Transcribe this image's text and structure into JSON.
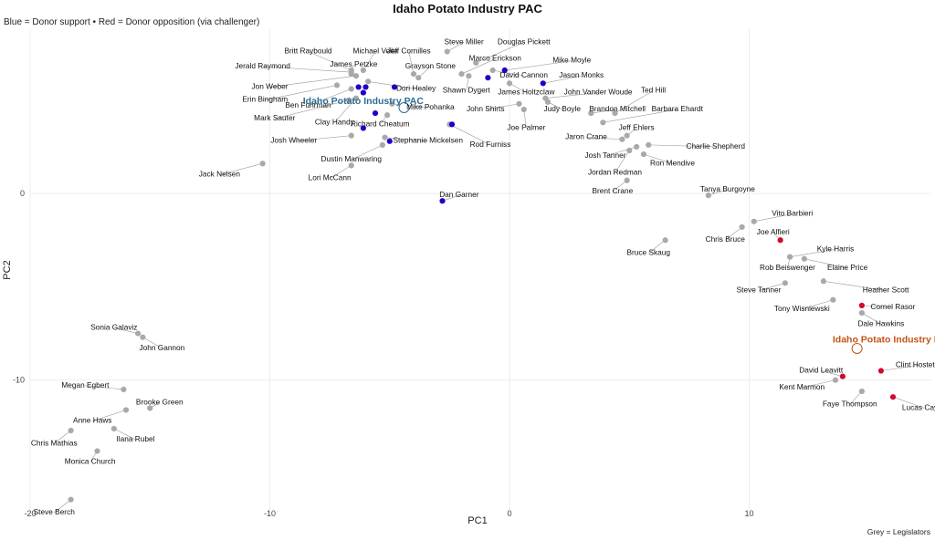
{
  "chart_data": {
    "type": "scatter",
    "title": "Idaho Potato Industry PAC",
    "subtitle": "Blue = Donor support • Red = Donor opposition (via challenger)",
    "xlabel": "PC1",
    "ylabel": "PC2",
    "caption": "Grey = Legislators",
    "xlim": [
      -20,
      17.6
    ],
    "ylim": [
      -17,
      8.8
    ],
    "xticks": [
      -20,
      -10,
      0,
      10
    ],
    "yticks": [
      0,
      -10
    ],
    "grid": true,
    "colors": {
      "support": "#1f00c8",
      "oppose": "#d10a2e",
      "neutral": "#a9a9a9",
      "pac_support": "#2c6e95",
      "pac_oppose": "#c4551a",
      "grid": "#ececf2"
    },
    "pac_points": [
      {
        "name": "Idaho Potato Industry PAC",
        "x": -4.4,
        "y": 4.6,
        "kind": "support",
        "lx": -6.1,
        "ly": 5.0
      },
      {
        "name": "Idaho Potato Industry PAC",
        "x": 14.5,
        "y": -8.3,
        "kind": "oppose",
        "lx": 16.0,
        "ly": -7.8
      }
    ],
    "points": [
      {
        "name": "Steve Miller",
        "x": -2.6,
        "y": 7.6,
        "kind": "neutral",
        "lx": -1.9,
        "ly": 8.2
      },
      {
        "name": "Douglas Pickett",
        "x": -1.4,
        "y": 7.0,
        "kind": "neutral",
        "lx": 0.6,
        "ly": 8.2
      },
      {
        "name": "Jeff Cornilles",
        "x": -4.0,
        "y": 6.4,
        "kind": "neutral",
        "lx": -4.2,
        "ly": 7.7
      },
      {
        "name": "Britt Raybould",
        "x": -6.6,
        "y": 6.6,
        "kind": "neutral",
        "lx": -8.4,
        "ly": 7.7
      },
      {
        "name": "Michael Veile",
        "x": -6.1,
        "y": 6.6,
        "kind": "neutral",
        "lx": -5.6,
        "ly": 7.7
      },
      {
        "name": "Marco Erickson",
        "x": -2.0,
        "y": 6.4,
        "kind": "neutral",
        "lx": -0.6,
        "ly": 7.3
      },
      {
        "name": "Mike Moyle",
        "x": -0.2,
        "y": 6.6,
        "kind": "support",
        "lx": 2.6,
        "ly": 7.2
      },
      {
        "name": "James Petzke",
        "x": -6.6,
        "y": 6.4,
        "kind": "neutral",
        "lx": -6.5,
        "ly": 7.0
      },
      {
        "name": "Jerald Raymond",
        "x": -6.6,
        "y": 6.5,
        "kind": "neutral",
        "lx": -10.3,
        "ly": 6.9
      },
      {
        "name": "Grayson Stone",
        "x": -3.8,
        "y": 6.2,
        "kind": "neutral",
        "lx": -3.3,
        "ly": 6.9
      },
      {
        "name": "David Cannon",
        "x": -0.7,
        "y": 6.6,
        "kind": "neutral",
        "lx": 0.6,
        "ly": 6.4
      },
      {
        "name": "Jason Monks",
        "x": 1.4,
        "y": 5.9,
        "kind": "support",
        "lx": 3.0,
        "ly": 6.4
      },
      {
        "name": "Jon Weber",
        "x": -6.4,
        "y": 6.3,
        "kind": "neutral",
        "lx": -10.0,
        "ly": 5.8
      },
      {
        "name": "Dori Healey",
        "x": -5.9,
        "y": 6.0,
        "kind": "neutral",
        "lx": -3.9,
        "ly": 5.7
      },
      {
        "name": "Shawn Dygert",
        "x": -1.7,
        "y": 6.3,
        "kind": "neutral",
        "lx": -1.8,
        "ly": 5.6
      },
      {
        "name": "James Holtzclaw",
        "x": 0.0,
        "y": 5.9,
        "kind": "neutral",
        "lx": 0.7,
        "ly": 5.5
      },
      {
        "name": "John Vander Woude",
        "x": 1.5,
        "y": 5.1,
        "kind": "neutral",
        "lx": 3.7,
        "ly": 5.5
      },
      {
        "name": "Erin Bingham",
        "x": -7.2,
        "y": 5.8,
        "kind": "neutral",
        "lx": -10.2,
        "ly": 5.1
      },
      {
        "name": "Ben Fuhrman",
        "x": -6.6,
        "y": 5.6,
        "kind": "neutral",
        "lx": -8.4,
        "ly": 4.8
      },
      {
        "name": "Mike Pohanka",
        "x": -4.9,
        "y": 4.8,
        "kind": "neutral",
        "lx": -3.3,
        "ly": 4.7
      },
      {
        "name": "Ted Hill",
        "x": 4.4,
        "y": 4.3,
        "kind": "neutral",
        "lx": 6.0,
        "ly": 5.6
      },
      {
        "name": "John Shirts",
        "x": 0.4,
        "y": 4.8,
        "kind": "neutral",
        "lx": -1.0,
        "ly": 4.6
      },
      {
        "name": "Judy Boyle",
        "x": 1.6,
        "y": 4.9,
        "kind": "neutral",
        "lx": 2.2,
        "ly": 4.6
      },
      {
        "name": "Brandon Mitchell",
        "x": 3.4,
        "y": 4.3,
        "kind": "neutral",
        "lx": 4.5,
        "ly": 4.6
      },
      {
        "name": "Barbara Ehardt",
        "x": 3.9,
        "y": 3.8,
        "kind": "neutral",
        "lx": 7.0,
        "ly": 4.6
      },
      {
        "name": "Mark Sauter",
        "x": -6.7,
        "y": 5.0,
        "kind": "neutral",
        "lx": -9.8,
        "ly": 4.1
      },
      {
        "name": "Clay Handy",
        "x": -6.4,
        "y": 5.1,
        "kind": "neutral",
        "lx": -7.3,
        "ly": 3.9
      },
      {
        "name": "Richard Cheatum",
        "x": -5.1,
        "y": 4.2,
        "kind": "neutral",
        "lx": -5.4,
        "ly": 3.8
      },
      {
        "name": "Joe Palmer",
        "x": 0.6,
        "y": 4.5,
        "kind": "neutral",
        "lx": 0.7,
        "ly": 3.6
      },
      {
        "name": "Jeff Ehlers",
        "x": 4.9,
        "y": 3.1,
        "kind": "neutral",
        "lx": 5.3,
        "ly": 3.6
      },
      {
        "name": "Jaron Crane",
        "x": 4.7,
        "y": 2.9,
        "kind": "neutral",
        "lx": 3.2,
        "ly": 3.1
      },
      {
        "name": "Charlie Shepherd",
        "x": 5.8,
        "y": 2.6,
        "kind": "neutral",
        "lx": 8.6,
        "ly": 2.6
      },
      {
        "name": "Josh Wheeler",
        "x": -6.6,
        "y": 3.1,
        "kind": "neutral",
        "lx": -9.0,
        "ly": 2.9
      },
      {
        "name": "Stephanie Mickelsen",
        "x": -5.2,
        "y": 3.0,
        "kind": "neutral",
        "lx": -3.4,
        "ly": 2.9
      },
      {
        "name": "Rod Furniss",
        "x": -2.5,
        "y": 3.7,
        "kind": "neutral",
        "lx": -0.8,
        "ly": 2.7
      },
      {
        "name": "Josh Tanner",
        "x": 5.3,
        "y": 2.5,
        "kind": "neutral",
        "lx": 4.0,
        "ly": 2.1
      },
      {
        "name": "Ron Mendive",
        "x": 5.6,
        "y": 2.1,
        "kind": "neutral",
        "lx": 6.8,
        "ly": 1.7
      },
      {
        "name": "Dustin Manwaring",
        "x": -5.3,
        "y": 2.6,
        "kind": "neutral",
        "lx": -6.6,
        "ly": 1.9
      },
      {
        "name": "Jordan Redman",
        "x": 5.0,
        "y": 2.3,
        "kind": "neutral",
        "lx": 4.4,
        "ly": 1.2
      },
      {
        "name": "Jack Nelsen",
        "x": -10.3,
        "y": 1.6,
        "kind": "neutral",
        "lx": -12.1,
        "ly": 1.1
      },
      {
        "name": "Lori McCann",
        "x": -6.6,
        "y": 1.5,
        "kind": "neutral",
        "lx": -7.5,
        "ly": 0.9
      },
      {
        "name": "Brent Crane",
        "x": 4.9,
        "y": 0.7,
        "kind": "neutral",
        "lx": 4.3,
        "ly": 0.2
      },
      {
        "name": "Dan Garner",
        "x": -2.8,
        "y": -0.4,
        "kind": "support",
        "lx": -2.1,
        "ly": 0.0
      },
      {
        "name": "Tanya Burgoyne",
        "x": 8.3,
        "y": -0.1,
        "kind": "neutral",
        "lx": 9.1,
        "ly": 0.3
      },
      {
        "name": "Jon Weber",
        "x": -6.3,
        "y": 5.7,
        "kind": "support",
        "lx": null,
        "ly": null
      },
      {
        "name": "Clay Handy",
        "x": -6.0,
        "y": 5.7,
        "kind": "support",
        "lx": null,
        "ly": null
      },
      {
        "name": "Ben Fuhrman",
        "x": -6.1,
        "y": 5.4,
        "kind": "support",
        "lx": null,
        "ly": null
      },
      {
        "name": "Dori Healey",
        "x": -4.8,
        "y": 5.7,
        "kind": "support",
        "lx": null,
        "ly": null
      },
      {
        "name": "Mark Sauter",
        "x": -5.6,
        "y": 4.3,
        "kind": "support",
        "lx": null,
        "ly": null
      },
      {
        "name": "Josh Wheeler",
        "x": -6.1,
        "y": 3.5,
        "kind": "support",
        "lx": null,
        "ly": null
      },
      {
        "name": "Stephanie Mickelsen",
        "x": -5.0,
        "y": 2.8,
        "kind": "support",
        "lx": null,
        "ly": null
      },
      {
        "name": "Rod Furniss",
        "x": -2.4,
        "y": 3.7,
        "kind": "support",
        "lx": null,
        "ly": null
      },
      {
        "name": "James Holtzclaw",
        "x": -0.9,
        "y": 6.2,
        "kind": "support",
        "lx": null,
        "ly": null
      },
      {
        "name": "Vito Barbieri",
        "x": 10.2,
        "y": -1.5,
        "kind": "neutral",
        "lx": 11.8,
        "ly": -1.0
      },
      {
        "name": "Chris Bruce",
        "x": 9.7,
        "y": -1.8,
        "kind": "neutral",
        "lx": 9.0,
        "ly": -2.4
      },
      {
        "name": "Joe Alfieri",
        "x": 11.3,
        "y": -2.5,
        "kind": "oppose",
        "lx": 11.0,
        "ly": -2.0
      },
      {
        "name": "Bruce Skaug",
        "x": 6.5,
        "y": -2.5,
        "kind": "neutral",
        "lx": 5.8,
        "ly": -3.1
      },
      {
        "name": "Kyle Harris",
        "x": 11.7,
        "y": -3.4,
        "kind": "neutral",
        "lx": 13.6,
        "ly": -2.9
      },
      {
        "name": "Rob Beiswenger",
        "x": 11.7,
        "y": -3.4,
        "kind": "neutral",
        "lx": 11.6,
        "ly": -3.9
      },
      {
        "name": "Elaine Price",
        "x": 12.3,
        "y": -3.5,
        "kind": "neutral",
        "lx": 14.1,
        "ly": -3.9
      },
      {
        "name": "Steve Tanner",
        "x": 11.5,
        "y": -4.8,
        "kind": "neutral",
        "lx": 10.4,
        "ly": -5.1
      },
      {
        "name": "Heather Scott",
        "x": 13.1,
        "y": -4.7,
        "kind": "neutral",
        "lx": 15.7,
        "ly": -5.1
      },
      {
        "name": "Tony Wisniewski",
        "x": 13.5,
        "y": -5.7,
        "kind": "neutral",
        "lx": 12.2,
        "ly": -6.1
      },
      {
        "name": "Cornel Rasor",
        "x": 14.7,
        "y": -6.0,
        "kind": "oppose",
        "lx": 16.0,
        "ly": -6.0
      },
      {
        "name": "Dale Hawkins",
        "x": 14.7,
        "y": -6.4,
        "kind": "neutral",
        "lx": 15.5,
        "ly": -6.9
      },
      {
        "name": "Clint Hostetler",
        "x": 15.5,
        "y": -9.5,
        "kind": "oppose",
        "lx": 17.1,
        "ly": -9.1
      },
      {
        "name": "David Leavitt",
        "x": 13.9,
        "y": -9.8,
        "kind": "oppose",
        "lx": 13.0,
        "ly": -9.4
      },
      {
        "name": "Kent Marmon",
        "x": 13.6,
        "y": -10.0,
        "kind": "neutral",
        "lx": 12.2,
        "ly": -10.3
      },
      {
        "name": "Faye Thompson",
        "x": 14.7,
        "y": -10.6,
        "kind": "neutral",
        "lx": 14.2,
        "ly": -11.2
      },
      {
        "name": "Lucas Cayler",
        "x": 16.0,
        "y": -10.9,
        "kind": "oppose",
        "lx": 17.3,
        "ly": -11.4
      },
      {
        "name": "Sonia Galaviz",
        "x": -15.5,
        "y": -7.5,
        "kind": "neutral",
        "lx": -16.5,
        "ly": -7.1
      },
      {
        "name": "John Gannon",
        "x": -15.3,
        "y": -7.7,
        "kind": "neutral",
        "lx": -14.5,
        "ly": -8.2
      },
      {
        "name": "Megan Egbert",
        "x": -16.1,
        "y": -10.5,
        "kind": "neutral",
        "lx": -17.7,
        "ly": -10.2
      },
      {
        "name": "Brooke Green",
        "x": -15.0,
        "y": -11.5,
        "kind": "neutral",
        "lx": -14.6,
        "ly": -11.1
      },
      {
        "name": "Anne Haws",
        "x": -16.0,
        "y": -11.6,
        "kind": "neutral",
        "lx": -17.4,
        "ly": -12.1
      },
      {
        "name": "Ilana Rubel",
        "x": -16.5,
        "y": -12.6,
        "kind": "neutral",
        "lx": -15.6,
        "ly": -13.1
      },
      {
        "name": "Chris Mathias",
        "x": -18.3,
        "y": -12.7,
        "kind": "neutral",
        "lx": -19.0,
        "ly": -13.3
      },
      {
        "name": "Monica Church",
        "x": -17.2,
        "y": -13.8,
        "kind": "neutral",
        "lx": -17.5,
        "ly": -14.3
      },
      {
        "name": "Steve Berch",
        "x": -18.3,
        "y": -16.4,
        "kind": "neutral",
        "lx": -19.0,
        "ly": -17.0
      }
    ]
  }
}
